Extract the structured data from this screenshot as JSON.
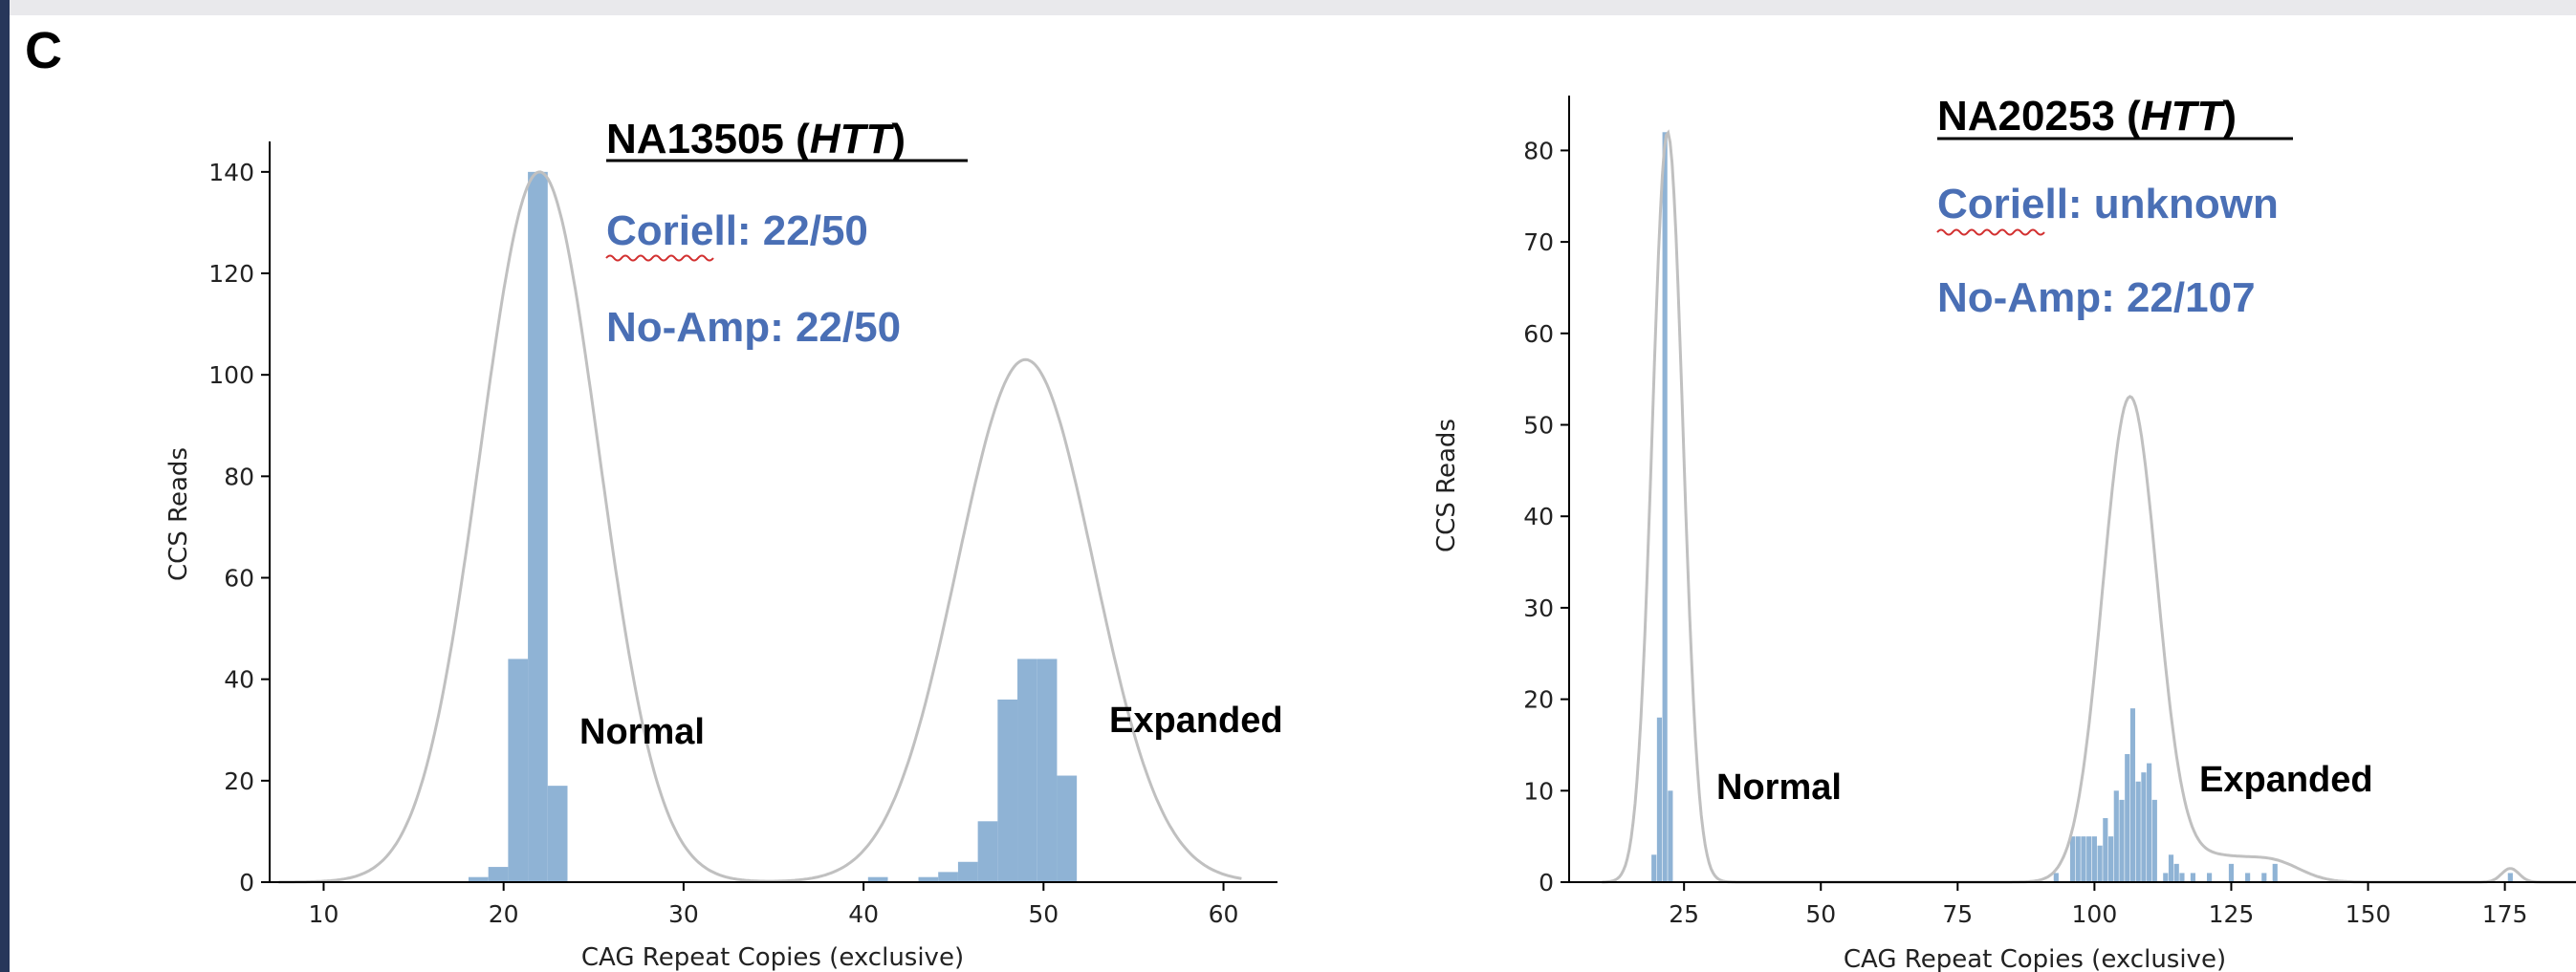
{
  "panel_label": "C",
  "colors": {
    "bar": "#8fb3d5",
    "density": "#c0c0c0",
    "annotation_blue": "#4a6fb5"
  },
  "chart_data": [
    {
      "type": "bar",
      "subtype": "histogram with density curve",
      "sample_title": "NA13505 (",
      "sample_gene": "HTT",
      "sample_title_close": ")",
      "coriell_text": "Coriell: 22/50",
      "noamp_text": "No-Amp: 22/50",
      "normal_label": "Normal",
      "expanded_label": "Expanded",
      "xlabel": "CAG Repeat Copies (exclusive)",
      "ylabel": "CCS Reads",
      "xlim": [
        7,
        63
      ],
      "ylim": [
        0,
        146
      ],
      "xticks": [
        10,
        20,
        30,
        40,
        50,
        60
      ],
      "yticks": [
        0,
        20,
        40,
        60,
        80,
        100,
        120,
        140
      ],
      "bin_width": 1.1,
      "bars": [
        {
          "x": 18.6,
          "y": 1
        },
        {
          "x": 19.7,
          "y": 3
        },
        {
          "x": 20.8,
          "y": 44
        },
        {
          "x": 21.9,
          "y": 140
        },
        {
          "x": 23.0,
          "y": 19
        },
        {
          "x": 40.8,
          "y": 1
        },
        {
          "x": 43.6,
          "y": 1
        },
        {
          "x": 44.7,
          "y": 2
        },
        {
          "x": 45.8,
          "y": 4
        },
        {
          "x": 46.9,
          "y": 12
        },
        {
          "x": 48.0,
          "y": 36
        },
        {
          "x": 49.1,
          "y": 44
        },
        {
          "x": 50.2,
          "y": 44
        },
        {
          "x": 51.3,
          "y": 21
        }
      ],
      "density_peaks": [
        {
          "mean": 22,
          "sd": 3.3,
          "height": 140
        },
        {
          "mean": 49,
          "sd": 3.8,
          "height": 103
        }
      ],
      "density_range": [
        7.5,
        61
      ]
    },
    {
      "type": "bar",
      "subtype": "histogram with density curve",
      "sample_title": "NA20253 (",
      "sample_gene": "HTT",
      "sample_title_close": ")",
      "coriell_text": "Coriell: unknown",
      "noamp_text": "No-Amp: 22/107",
      "normal_label": "Normal",
      "expanded_label": "Expanded",
      "xlabel": "CAG Repeat Copies (exclusive)",
      "ylabel": "CCS Reads",
      "xlim": [
        4,
        188
      ],
      "ylim": [
        0,
        86
      ],
      "xticks": [
        25,
        50,
        75,
        100,
        125,
        150,
        175
      ],
      "yticks": [
        0,
        10,
        20,
        30,
        40,
        50,
        60,
        70,
        80
      ],
      "bin_width": 0.9,
      "bars": [
        {
          "x": 19.5,
          "y": 3
        },
        {
          "x": 20.5,
          "y": 18
        },
        {
          "x": 21.5,
          "y": 82
        },
        {
          "x": 22.5,
          "y": 10
        },
        {
          "x": 93,
          "y": 1
        },
        {
          "x": 96,
          "y": 5
        },
        {
          "x": 97,
          "y": 5
        },
        {
          "x": 98,
          "y": 5
        },
        {
          "x": 99,
          "y": 5
        },
        {
          "x": 100,
          "y": 5
        },
        {
          "x": 101,
          "y": 4
        },
        {
          "x": 102,
          "y": 7
        },
        {
          "x": 103,
          "y": 5
        },
        {
          "x": 104,
          "y": 10
        },
        {
          "x": 105,
          "y": 9
        },
        {
          "x": 106,
          "y": 14
        },
        {
          "x": 107,
          "y": 19
        },
        {
          "x": 108,
          "y": 11
        },
        {
          "x": 109,
          "y": 12
        },
        {
          "x": 110,
          "y": 13
        },
        {
          "x": 111,
          "y": 9
        },
        {
          "x": 113,
          "y": 1
        },
        {
          "x": 114,
          "y": 3
        },
        {
          "x": 115,
          "y": 2
        },
        {
          "x": 116,
          "y": 1
        },
        {
          "x": 118,
          "y": 1
        },
        {
          "x": 121,
          "y": 1
        },
        {
          "x": 125,
          "y": 2
        },
        {
          "x": 128,
          "y": 1
        },
        {
          "x": 131,
          "y": 1
        },
        {
          "x": 133,
          "y": 2
        },
        {
          "x": 176,
          "y": 1
        }
      ],
      "density_peaks": [
        {
          "mean": 22,
          "sd": 2.8,
          "height": 82
        },
        {
          "mean": 106.5,
          "sd": 5,
          "height": 53
        },
        {
          "mean": 122,
          "sd": 6,
          "height": 2.6
        },
        {
          "mean": 133,
          "sd": 5,
          "height": 2
        },
        {
          "mean": 176,
          "sd": 1.6,
          "height": 1.5
        }
      ],
      "density_range": [
        10,
        188
      ]
    }
  ]
}
